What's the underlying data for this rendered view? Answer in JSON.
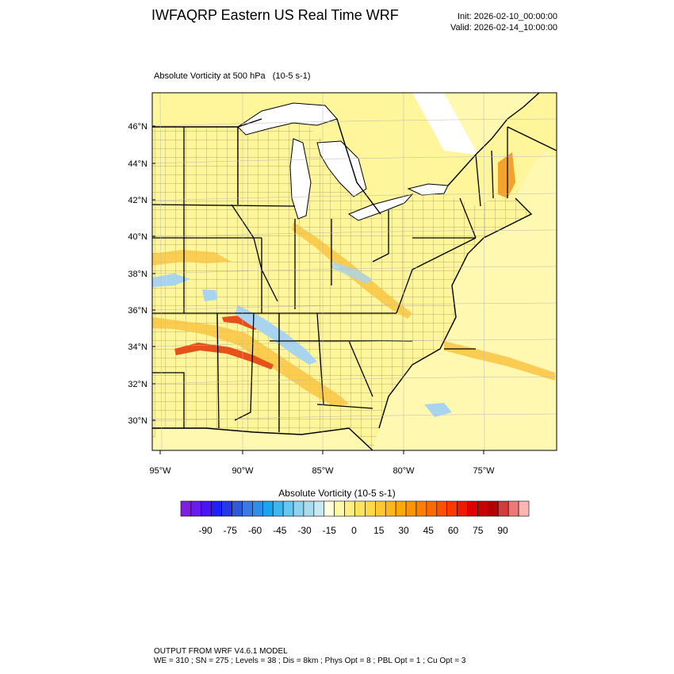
{
  "header": {
    "title": "IWFAQRP Eastern US Real Time WRF",
    "init": "Init: 2026-02-10_00:00:00",
    "valid": "Valid: 2026-02-14_10:00:00"
  },
  "field": {
    "label": "Absolute Vorticity at 500 hPa   (10-5 s-1)"
  },
  "map": {
    "lat_labels": [
      "46°N",
      "44°N",
      "42°N",
      "40°N",
      "38°N",
      "36°N",
      "34°N",
      "32°N",
      "30°N"
    ],
    "lon_labels": [
      "95°W",
      "90°W",
      "85°W",
      "80°W",
      "75°W"
    ],
    "land_color": "#fff59b",
    "water_color": "#ffffff",
    "positive_color": "#f9c442",
    "strong_positive_color": "#e8501a",
    "negative_color": "#a8d4f0"
  },
  "colorbar": {
    "title": "Absolute Vorticity  (10-5 s-1)",
    "tick_labels": [
      "-90",
      "-75",
      "-60",
      "-45",
      "-30",
      "-15",
      "0",
      "15",
      "30",
      "45",
      "60",
      "75",
      "90"
    ],
    "colors": [
      "#7f1fe0",
      "#6a1cf0",
      "#4a14f5",
      "#2020ff",
      "#2438e8",
      "#2e5ad8",
      "#3c78e6",
      "#2e8eea",
      "#1ca4ec",
      "#3cb8f0",
      "#64c8f0",
      "#8cd4f0",
      "#aadcf0",
      "#c8e8f4",
      "#ffffe0",
      "#fff8a8",
      "#ffef80",
      "#ffe460",
      "#ffd848",
      "#ffc830",
      "#ffb818",
      "#ffa808",
      "#ff9400",
      "#ff8000",
      "#ff6a00",
      "#ff5000",
      "#ff3800",
      "#f21800",
      "#e00000",
      "#c80000",
      "#b40000",
      "#d23c3c",
      "#ec7878",
      "#ffb4b4"
    ]
  },
  "footer": {
    "line1": "OUTPUT FROM WRF V4.6.1 MODEL",
    "line2": "WE = 310 ; SN = 275 ; Levels = 38 ; Dis = 8km ; Phys Opt = 8 ; PBL Opt = 1 ; Cu Opt = 3"
  }
}
